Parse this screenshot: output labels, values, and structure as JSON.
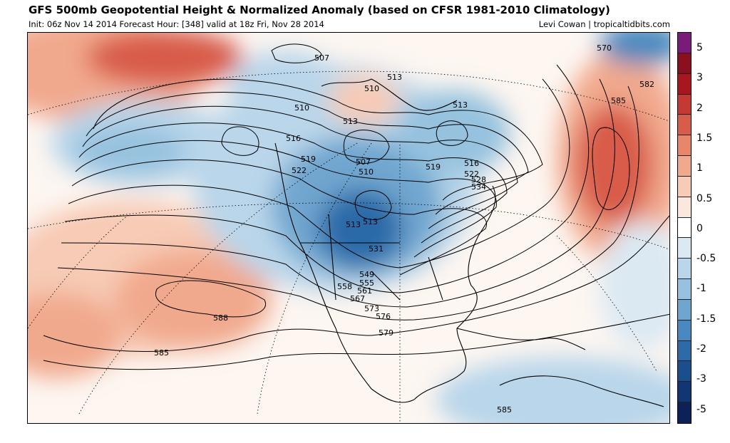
{
  "header": {
    "title": "GFS 500mb Geopotential Height & Normalized Anomaly (based on CFSR 1981-2010 Climatology)",
    "subtitle": "Init: 06z Nov 14 2014   Forecast Hour: [348]   valid at 18z Fri, Nov 28 2014",
    "credit": "Levi Cowan | tropicaltidbits.com"
  },
  "colorbar": {
    "colors": [
      "#7a1a7a",
      "#8b0f1f",
      "#a8161f",
      "#c43a33",
      "#d85c4a",
      "#e8866a",
      "#f1a98d",
      "#f7cbb5",
      "#fbe7dc",
      "#ffffff",
      "#dbe9f3",
      "#b9d6ea",
      "#96c2df",
      "#6fa6cf",
      "#4a89bf",
      "#2c6aa8",
      "#1b4e8c",
      "#113673",
      "#0b2158"
    ],
    "labels": [
      "5",
      "3",
      "2",
      "1.5",
      "1",
      "0.5",
      "0",
      "-0.5",
      "-1",
      "-1.5",
      "-2",
      "-3",
      "-5"
    ]
  },
  "contour_labels": [
    {
      "text": "507"
    },
    {
      "text": "510"
    },
    {
      "text": "513"
    },
    {
      "text": "513"
    },
    {
      "text": "510"
    },
    {
      "text": "516"
    },
    {
      "text": "519"
    },
    {
      "text": "522"
    },
    {
      "text": "513"
    },
    {
      "text": "507"
    },
    {
      "text": "510"
    },
    {
      "text": "513"
    },
    {
      "text": "513"
    },
    {
      "text": "531"
    },
    {
      "text": "516"
    },
    {
      "text": "519"
    },
    {
      "text": "522"
    },
    {
      "text": "528"
    },
    {
      "text": "534"
    },
    {
      "text": "570"
    },
    {
      "text": "582"
    },
    {
      "text": "585"
    },
    {
      "text": "549"
    },
    {
      "text": "555"
    },
    {
      "text": "558"
    },
    {
      "text": "561"
    },
    {
      "text": "567"
    },
    {
      "text": "573"
    },
    {
      "text": "576"
    },
    {
      "text": "579"
    },
    {
      "text": "588"
    },
    {
      "text": "585"
    },
    {
      "text": "585"
    }
  ]
}
